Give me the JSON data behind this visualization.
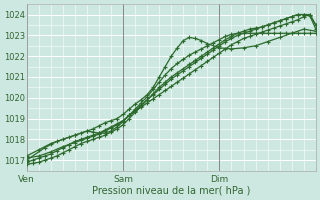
{
  "title": "",
  "xlabel": "Pression niveau de la mer( hPa )",
  "bg_color": "#cce8e0",
  "grid_major_color": "#ffffff",
  "grid_minor_color": "#ddf0ea",
  "line_color": "#2d6a2d",
  "ylim": [
    1016.5,
    1024.5
  ],
  "xlim": [
    0,
    48
  ],
  "yticks": [
    1017,
    1018,
    1019,
    1020,
    1021,
    1022,
    1023,
    1024
  ],
  "xtick_positions": [
    0,
    16,
    32
  ],
  "xtick_labels": [
    "Ven",
    "Sam",
    "Dim"
  ],
  "vline_positions": [
    0,
    16,
    32
  ],
  "series1_x": [
    0,
    1,
    2,
    3,
    4,
    5,
    6,
    7,
    8,
    9,
    10,
    11,
    12,
    13,
    14,
    15,
    16,
    17,
    18,
    19,
    20,
    21,
    22,
    23,
    24,
    25,
    26,
    27,
    28,
    29,
    30,
    31,
    32,
    33,
    34,
    35,
    36,
    37,
    38,
    39,
    40,
    41,
    42,
    43,
    44,
    45,
    46,
    47,
    48
  ],
  "series1_y": [
    1016.8,
    1016.85,
    1016.9,
    1017.0,
    1017.1,
    1017.2,
    1017.35,
    1017.5,
    1017.65,
    1017.8,
    1017.9,
    1018.0,
    1018.1,
    1018.2,
    1018.35,
    1018.5,
    1018.7,
    1019.0,
    1019.3,
    1019.6,
    1019.9,
    1020.2,
    1020.5,
    1020.75,
    1021.0,
    1021.2,
    1021.4,
    1021.6,
    1021.8,
    1022.0,
    1022.2,
    1022.4,
    1022.6,
    1022.8,
    1022.95,
    1023.1,
    1023.2,
    1023.3,
    1023.35,
    1023.4,
    1023.5,
    1023.6,
    1023.7,
    1023.8,
    1023.9,
    1024.0,
    1024.0,
    1024.0,
    1023.5
  ],
  "series2_x": [
    0,
    1,
    2,
    3,
    4,
    5,
    6,
    7,
    8,
    9,
    10,
    11,
    12,
    13,
    14,
    15,
    16,
    17,
    18,
    19,
    20,
    21,
    22,
    23,
    24,
    25,
    26,
    27,
    28,
    29,
    30,
    31,
    32,
    33,
    34,
    35,
    36,
    37,
    38,
    39,
    40,
    41,
    42,
    43,
    44,
    45,
    46,
    47,
    48
  ],
  "series2_y": [
    1016.9,
    1017.0,
    1017.1,
    1017.2,
    1017.3,
    1017.45,
    1017.6,
    1017.75,
    1017.9,
    1018.0,
    1018.1,
    1018.2,
    1018.3,
    1018.45,
    1018.6,
    1018.75,
    1018.9,
    1019.15,
    1019.4,
    1019.65,
    1019.9,
    1020.15,
    1020.4,
    1020.65,
    1020.9,
    1021.1,
    1021.3,
    1021.5,
    1021.7,
    1021.9,
    1022.1,
    1022.3,
    1022.5,
    1022.7,
    1022.85,
    1023.0,
    1023.1,
    1023.2,
    1023.3,
    1023.4,
    1023.5,
    1023.6,
    1023.7,
    1023.8,
    1023.9,
    1024.0,
    1024.0,
    1023.95,
    1023.3
  ],
  "series3_x": [
    0,
    2,
    4,
    6,
    7,
    8,
    9,
    10,
    11,
    12,
    13,
    14,
    15,
    16,
    17,
    18,
    19,
    20,
    21,
    22,
    23,
    24,
    25,
    26,
    27,
    28,
    29,
    30,
    31,
    32,
    33,
    34,
    35,
    36,
    37,
    38,
    39,
    40,
    41,
    42,
    43,
    44,
    45,
    46,
    47,
    48
  ],
  "series3_y": [
    1017.1,
    1017.2,
    1017.4,
    1017.65,
    1017.75,
    1017.85,
    1017.95,
    1018.05,
    1018.15,
    1018.25,
    1018.4,
    1018.55,
    1018.7,
    1018.9,
    1019.15,
    1019.35,
    1019.55,
    1019.75,
    1019.95,
    1020.15,
    1020.35,
    1020.55,
    1020.75,
    1020.95,
    1021.15,
    1021.35,
    1021.55,
    1021.75,
    1021.95,
    1022.15,
    1022.35,
    1022.55,
    1022.7,
    1022.85,
    1022.95,
    1023.05,
    1023.15,
    1023.25,
    1023.35,
    1023.45,
    1023.55,
    1023.65,
    1023.75,
    1023.9,
    1024.0,
    1023.5
  ],
  "series4_x": [
    0,
    3,
    5,
    7,
    8,
    9,
    10,
    11,
    12,
    13,
    14,
    15,
    16,
    17,
    18,
    19,
    20,
    21,
    22,
    23,
    24,
    25,
    26,
    27,
    28,
    29,
    30,
    31,
    32,
    33,
    34,
    35,
    36,
    37,
    38,
    39,
    40,
    41,
    42,
    43,
    44,
    45,
    46,
    47,
    48
  ],
  "series4_y": [
    1017.0,
    1017.6,
    1017.9,
    1018.1,
    1018.2,
    1018.3,
    1018.4,
    1018.35,
    1018.3,
    1018.3,
    1018.4,
    1018.6,
    1018.85,
    1019.15,
    1019.45,
    1019.75,
    1020.05,
    1020.4,
    1020.75,
    1021.1,
    1021.4,
    1021.65,
    1021.85,
    1022.05,
    1022.2,
    1022.35,
    1022.5,
    1022.65,
    1022.8,
    1022.95,
    1023.05,
    1023.1,
    1023.1,
    1023.1,
    1023.1,
    1023.1,
    1023.1,
    1023.1,
    1023.1,
    1023.1,
    1023.1,
    1023.1,
    1023.1,
    1023.1,
    1023.1
  ],
  "series5_x": [
    0,
    2,
    4,
    6,
    8,
    10,
    11,
    12,
    13,
    14,
    15,
    16,
    17,
    18,
    19,
    20,
    21,
    22,
    23,
    24,
    25,
    26,
    27,
    28,
    29,
    30,
    32,
    34,
    36,
    38,
    40,
    42,
    44,
    46,
    48
  ],
  "series5_y": [
    1017.2,
    1017.5,
    1017.8,
    1018.0,
    1018.2,
    1018.4,
    1018.5,
    1018.65,
    1018.8,
    1018.9,
    1019.0,
    1019.2,
    1019.45,
    1019.7,
    1019.9,
    1020.15,
    1020.5,
    1021.0,
    1021.5,
    1022.0,
    1022.4,
    1022.75,
    1022.9,
    1022.85,
    1022.75,
    1022.6,
    1022.4,
    1022.35,
    1022.4,
    1022.5,
    1022.7,
    1022.9,
    1023.1,
    1023.3,
    1023.2
  ]
}
